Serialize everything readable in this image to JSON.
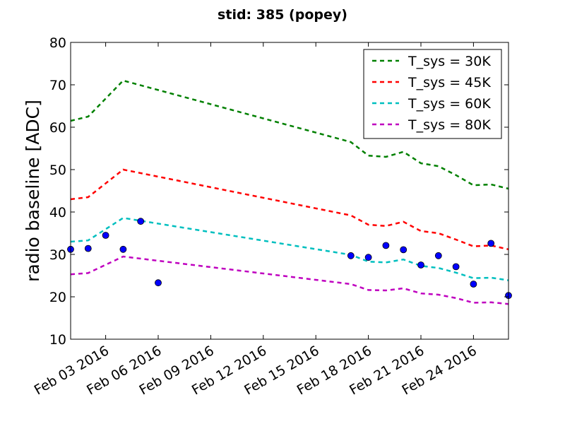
{
  "chart_data": {
    "type": "line",
    "title": "stid: 385 (popey)",
    "xlabel": "",
    "ylabel": "radio baseline [ADC]",
    "x_unit": "date",
    "xlim": [
      "2016-02-01",
      "2016-02-26"
    ],
    "ylim": [
      10,
      80
    ],
    "y_ticks": [
      10,
      20,
      30,
      40,
      50,
      60,
      70,
      80
    ],
    "x_ticks": [
      {
        "date": "2016-02-03",
        "label": "Feb 03 2016"
      },
      {
        "date": "2016-02-06",
        "label": "Feb 06 2016"
      },
      {
        "date": "2016-02-09",
        "label": "Feb 09 2016"
      },
      {
        "date": "2016-02-12",
        "label": "Feb 12 2016"
      },
      {
        "date": "2016-02-15",
        "label": "Feb 15 2016"
      },
      {
        "date": "2016-02-18",
        "label": "Feb 18 2016"
      },
      {
        "date": "2016-02-21",
        "label": "Feb 21 2016"
      },
      {
        "date": "2016-02-24",
        "label": "Feb 24 2016"
      }
    ],
    "grid": false,
    "legend_position": "top-right",
    "line_dates": [
      "2016-02-01",
      "2016-02-02",
      "2016-02-04",
      "2016-02-17",
      "2016-02-18",
      "2016-02-19",
      "2016-02-20",
      "2016-02-21",
      "2016-02-22",
      "2016-02-23",
      "2016-02-24",
      "2016-02-25",
      "2016-02-26"
    ],
    "series": [
      {
        "name": "T_sys = 30K",
        "color": "#008000",
        "style": "dashed",
        "values": [
          61.5,
          62.5,
          71.0,
          56.5,
          53.3,
          53.0,
          54.2,
          51.5,
          50.8,
          48.7,
          46.3,
          46.5,
          45.5
        ]
      },
      {
        "name": "T_sys = 45K",
        "color": "#ff0000",
        "style": "dashed",
        "values": [
          43.0,
          43.5,
          50.0,
          39.2,
          37.0,
          36.7,
          37.7,
          35.5,
          35.0,
          33.5,
          31.9,
          32.1,
          31.2
        ]
      },
      {
        "name": "T_sys = 60K",
        "color": "#00bfbf",
        "style": "dashed",
        "values": [
          33.0,
          33.3,
          38.6,
          29.9,
          28.3,
          28.1,
          28.8,
          27.3,
          26.8,
          25.7,
          24.4,
          24.5,
          23.9
        ]
      },
      {
        "name": "T_sys = 80K",
        "color": "#bf00bf",
        "style": "dashed",
        "values": [
          25.3,
          25.6,
          29.5,
          23.0,
          21.6,
          21.5,
          22.0,
          20.8,
          20.5,
          19.7,
          18.6,
          18.7,
          18.3
        ]
      }
    ],
    "points": {
      "color": "#0000ff",
      "data": [
        {
          "date": "2016-02-01",
          "value": 31.2
        },
        {
          "date": "2016-02-02",
          "value": 31.4
        },
        {
          "date": "2016-02-03",
          "value": 34.5
        },
        {
          "date": "2016-02-04",
          "value": 31.2
        },
        {
          "date": "2016-02-05",
          "value": 37.8
        },
        {
          "date": "2016-02-06",
          "value": 23.3
        },
        {
          "date": "2016-02-17",
          "value": 29.7
        },
        {
          "date": "2016-02-18",
          "value": 29.3
        },
        {
          "date": "2016-02-19",
          "value": 32.1
        },
        {
          "date": "2016-02-20",
          "value": 31.1
        },
        {
          "date": "2016-02-21",
          "value": 27.5
        },
        {
          "date": "2016-02-22",
          "value": 29.7
        },
        {
          "date": "2016-02-23",
          "value": 27.1
        },
        {
          "date": "2016-02-24",
          "value": 23.0
        },
        {
          "date": "2016-02-25",
          "value": 32.6
        },
        {
          "date": "2016-02-26",
          "value": 20.3
        }
      ]
    }
  }
}
